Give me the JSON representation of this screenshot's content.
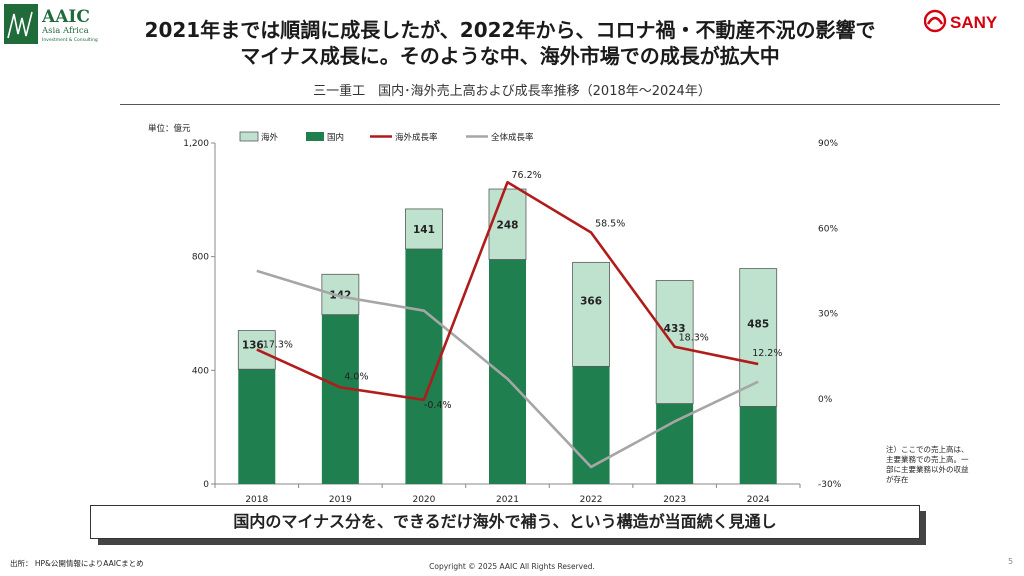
{
  "header": {
    "logo_left": {
      "name": "AAIC",
      "tagline": "Asia Africa",
      "subtagline": "Investment & Consulting"
    },
    "logo_right": {
      "name": "SANY"
    },
    "title_line1": "2021年までは順調に成長したが、2022年から、コロナ禍・不動産不況の影響で",
    "title_line2": "マイナス成長に。そのような中、海外市場での成長が拡大中",
    "subtitle": "三一重工　国内･海外売上高および成長率推移（2018年～2024年）"
  },
  "colors": {
    "overseas": "#bfe2cf",
    "domestic": "#1f7f4f",
    "overseas_growth": "#b01c1c",
    "total_growth": "#a6a6a6",
    "logo_green": "#1f6b3a",
    "sany_red": "#d6000f"
  },
  "chart_data": {
    "type": "bar",
    "unit_label": "単位：億元",
    "categories": [
      "2018",
      "2019",
      "2020",
      "2021",
      "2022",
      "2023",
      "2024"
    ],
    "series": [
      {
        "name": "海外",
        "kind": "stacked-bar",
        "values": [
          136,
          142,
          141,
          248,
          366,
          433,
          485
        ]
      },
      {
        "name": "国内",
        "kind": "stacked-bar",
        "values": [
          404,
          596,
          827,
          790,
          414,
          283,
          273
        ]
      },
      {
        "name": "海外成長率",
        "kind": "line",
        "axis": "right",
        "values": [
          17.3,
          4.0,
          -0.4,
          76.2,
          58.5,
          18.3,
          12.2
        ]
      },
      {
        "name": "全体成長率",
        "kind": "line",
        "axis": "right",
        "values": [
          45.0,
          36.0,
          31.0,
          7.0,
          -24.0,
          -8.0,
          6.0
        ]
      }
    ],
    "overseas_labels": [
      "136",
      "142",
      "141",
      "248",
      "366",
      "433",
      "485"
    ],
    "growth_labels": [
      "17.3%",
      "4.0%",
      "-0.4%",
      "76.2%",
      "58.5%",
      "18.3%",
      "12.2%"
    ],
    "ylim_left": [
      0,
      1200
    ],
    "yticks_left": [
      "0",
      "400",
      "800",
      "1,200"
    ],
    "ylim_right": [
      -30,
      90
    ],
    "yticks_right": [
      "-30%",
      "0%",
      "30%",
      "60%",
      "90%"
    ],
    "legend_position": "top"
  },
  "callout": "国内のマイナス分を、できるだけ海外で補う、という構造が当面続く見通し",
  "note": "注）ここでの売上高は、主要業務での売上高。一部に主要業務以外の収益が存在",
  "source": "出所： HP&公開情報によりAAICまとめ",
  "copyright": "Copyright © 2025 AAIC All Rights Reserved.",
  "page_number": "5"
}
